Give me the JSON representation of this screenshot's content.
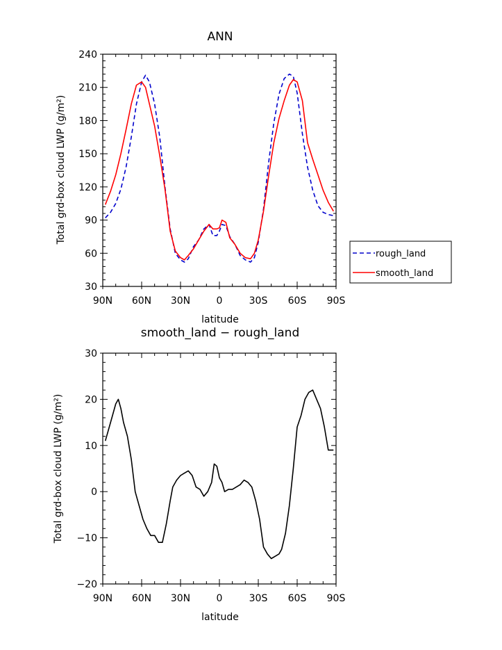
{
  "chart_data": [
    {
      "type": "line",
      "title": "ANN",
      "xlabel": "latitude",
      "ylabel": "Total grd-box cloud LWP (g/m²)",
      "ylim": [
        30,
        240
      ],
      "xlim": [
        90,
        -90
      ],
      "x_tick_values": [
        90,
        60,
        30,
        0,
        -30,
        -60,
        -90
      ],
      "x_tick_labels": [
        "90N",
        "60N",
        "30N",
        "0",
        "30S",
        "60S",
        "90S"
      ],
      "y_ticks": [
        30,
        60,
        90,
        120,
        150,
        180,
        210,
        240
      ],
      "legend": "right",
      "series": [
        {
          "name": "rough_land",
          "color": "#0000cc",
          "style": "dashed",
          "x": [
            88,
            84,
            80,
            76,
            72,
            68,
            64,
            60,
            57,
            54,
            50,
            46,
            42,
            38,
            34,
            30,
            27,
            24,
            20,
            16,
            12,
            8,
            5,
            2,
            0,
            -2,
            -5,
            -8,
            -12,
            -16,
            -20,
            -24,
            -27,
            -30,
            -34,
            -38,
            -42,
            -46,
            -50,
            -54,
            -57,
            -60,
            -64,
            -68,
            -72,
            -76,
            -80,
            -84,
            -88
          ],
          "values": [
            92,
            97,
            105,
            118,
            138,
            165,
            195,
            215,
            221,
            215,
            195,
            165,
            120,
            82,
            60,
            54,
            52,
            55,
            66,
            72,
            82,
            86,
            76,
            76,
            80,
            86,
            85,
            75,
            68,
            58,
            54,
            52,
            56,
            70,
            100,
            142,
            178,
            204,
            218,
            222,
            220,
            205,
            168,
            138,
            117,
            103,
            97,
            95,
            94
          ]
        },
        {
          "name": "smooth_land",
          "color": "#ff0000",
          "style": "solid",
          "x": [
            88,
            84,
            80,
            76,
            72,
            68,
            64,
            60,
            57,
            54,
            50,
            46,
            42,
            38,
            34,
            30,
            27,
            24,
            20,
            16,
            12,
            8,
            5,
            2,
            0,
            -2,
            -5,
            -8,
            -12,
            -16,
            -20,
            -24,
            -27,
            -30,
            -34,
            -38,
            -42,
            -46,
            -50,
            -54,
            -57,
            -60,
            -64,
            -68,
            -72,
            -76,
            -80,
            -84,
            -88
          ],
          "values": [
            104,
            116,
            131,
            150,
            172,
            195,
            212,
            215,
            210,
            195,
            175,
            148,
            118,
            80,
            62,
            56,
            54,
            58,
            64,
            72,
            80,
            86,
            82,
            82,
            83,
            90,
            88,
            74,
            68,
            60,
            56,
            55,
            60,
            72,
            98,
            130,
            160,
            182,
            198,
            212,
            217,
            215,
            198,
            160,
            145,
            131,
            117,
            106,
            98
          ]
        }
      ]
    },
    {
      "type": "line",
      "title": "smooth_land − rough_land",
      "xlabel": "latitude",
      "ylabel": "Total grd-box cloud LWP (g/m²)",
      "ylim": [
        -20,
        30
      ],
      "xlim": [
        90,
        -90
      ],
      "x_tick_values": [
        90,
        60,
        30,
        0,
        -30,
        -60,
        -90
      ],
      "x_tick_labels": [
        "90N",
        "60N",
        "30N",
        "0",
        "30S",
        "60S",
        "90S"
      ],
      "y_ticks": [
        -20,
        -10,
        0,
        10,
        20,
        30
      ],
      "y_tick_labels": [
        "−20",
        "−10",
        "0",
        "10",
        "20",
        "30"
      ],
      "series": [
        {
          "color": "#000000",
          "style": "solid",
          "x": [
            88,
            86,
            83,
            80,
            78,
            76,
            74,
            71,
            68,
            65,
            62,
            59,
            56,
            53,
            50,
            47,
            44,
            41,
            38,
            36,
            33,
            30,
            27,
            24,
            21,
            18,
            15,
            12,
            9,
            6,
            4,
            2,
            0,
            -2,
            -4,
            -7,
            -10,
            -13,
            -16,
            -19,
            -22,
            -25,
            -28,
            -31,
            -34,
            -37,
            -40,
            -43,
            -46,
            -48,
            -51,
            -54,
            -57,
            -60,
            -63,
            -66,
            -69,
            -72,
            -75,
            -78,
            -81,
            -84,
            -88
          ],
          "values": [
            11,
            13,
            16,
            19,
            20,
            18,
            15,
            12,
            7,
            0,
            -3,
            -6,
            -8,
            -9.5,
            -9.5,
            -11,
            -11,
            -7,
            -2,
            1,
            2.5,
            3.5,
            4,
            4.5,
            3.5,
            1,
            0.5,
            -1,
            0,
            2,
            6,
            5.5,
            3,
            2,
            0,
            0.5,
            0.5,
            1,
            1.5,
            2.5,
            2,
            1,
            -2,
            -6,
            -12,
            -13.5,
            -14.5,
            -14,
            -13.5,
            -12.5,
            -9,
            -3,
            5,
            14,
            16.5,
            20,
            21.5,
            22,
            20,
            18,
            14,
            9,
            9
          ]
        }
      ]
    }
  ]
}
